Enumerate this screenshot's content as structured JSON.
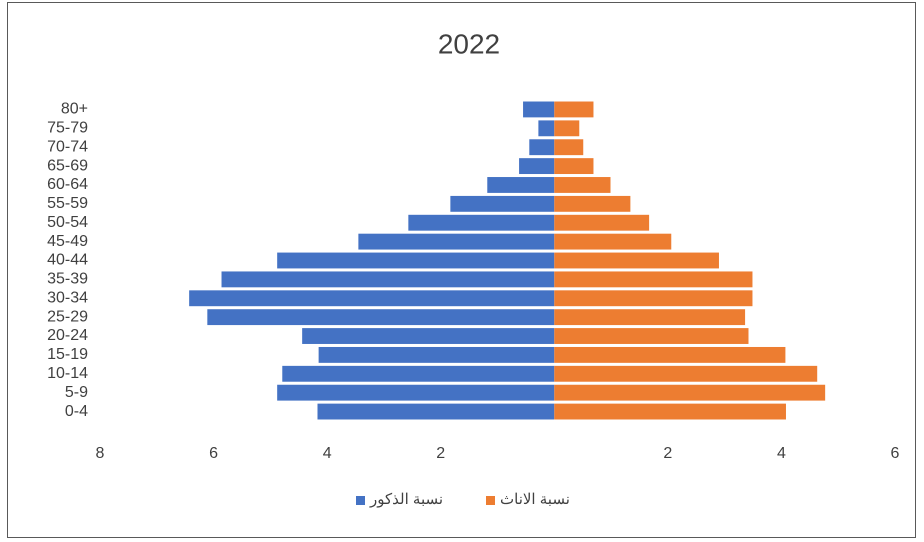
{
  "chart_data": {
    "type": "population_pyramid",
    "title": "2022",
    "categories": [
      "0-4",
      "5-9",
      "10-14",
      "15-19",
      "20-24",
      "25-29",
      "30-34",
      "35-39",
      "40-44",
      "45-49",
      "50-54",
      "55-59",
      "60-64",
      "65-69",
      "70-74",
      "75-79",
      "80+"
    ],
    "series": [
      {
        "name": "نسبة الذكور",
        "color": "#4472c4",
        "values": [
          -4.17,
          -4.88,
          -4.79,
          -4.15,
          -4.44,
          -6.11,
          -6.43,
          -5.86,
          -4.88,
          -3.45,
          -2.57,
          -1.83,
          -1.18,
          -0.62,
          -0.44,
          -0.28,
          -0.55
        ]
      },
      {
        "name": "نسبة الاناث",
        "color": "#ed7d31",
        "values": [
          4.08,
          4.77,
          4.63,
          4.07,
          3.42,
          3.36,
          3.49,
          3.49,
          2.9,
          2.06,
          1.67,
          1.34,
          0.99,
          0.69,
          0.51,
          0.44,
          0.69
        ]
      }
    ],
    "xlim": [
      -8,
      6
    ],
    "xticks": [
      {
        "value": -8,
        "label": "8"
      },
      {
        "value": -6,
        "label": "6"
      },
      {
        "value": -4,
        "label": "4"
      },
      {
        "value": -2,
        "label": "2"
      },
      2,
      4,
      6
    ],
    "legend": "bottom"
  }
}
